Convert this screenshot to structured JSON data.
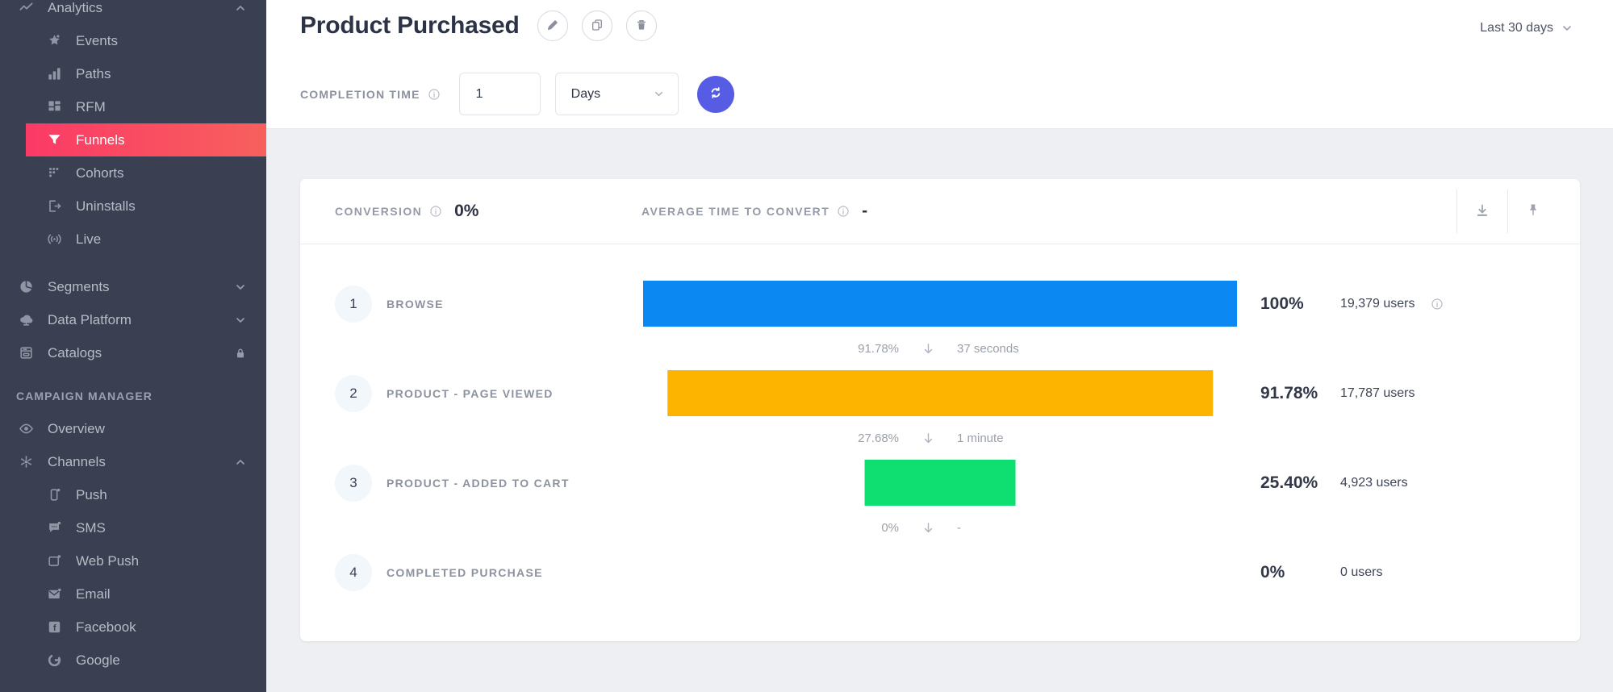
{
  "sidebar": {
    "sections": [
      {
        "title": "",
        "items": [
          {
            "label": "Analytics",
            "icon": "line-chart",
            "level": 0,
            "chevron": "up"
          },
          {
            "label": "Events",
            "icon": "star",
            "level": 1
          },
          {
            "label": "Paths",
            "icon": "bar-chart",
            "level": 1
          },
          {
            "label": "RFM",
            "icon": "grid",
            "level": 1
          },
          {
            "label": "Funnels",
            "icon": "funnel",
            "level": 1,
            "active": true
          },
          {
            "label": "Cohorts",
            "icon": "cohorts",
            "level": 1
          },
          {
            "label": "Uninstalls",
            "icon": "uninstall",
            "level": 1
          },
          {
            "label": "Live",
            "icon": "live",
            "level": 1
          },
          {
            "label": "Segments",
            "icon": "pie",
            "level": 0,
            "chevron": "down",
            "gap": true
          },
          {
            "label": "Data Platform",
            "icon": "cloud",
            "level": 0,
            "chevron": "down"
          },
          {
            "label": "Catalogs",
            "icon": "catalog",
            "level": 0,
            "lock": true
          }
        ]
      },
      {
        "title": "CAMPAIGN MANAGER",
        "items": [
          {
            "label": "Overview",
            "icon": "eye",
            "level": 0
          },
          {
            "label": "Channels",
            "icon": "hub",
            "level": 0,
            "chevron": "up"
          },
          {
            "label": "Push",
            "icon": "phone",
            "level": 1
          },
          {
            "label": "SMS",
            "icon": "chat",
            "level": 1
          },
          {
            "label": "Web Push",
            "icon": "browser",
            "level": 1
          },
          {
            "label": "Email",
            "icon": "envelope",
            "level": 1
          },
          {
            "label": "Facebook",
            "icon": "facebook",
            "level": 1
          },
          {
            "label": "Google",
            "icon": "google",
            "level": 1
          }
        ]
      }
    ]
  },
  "header": {
    "title": "Product Purchased",
    "date_range": "Last 30 days",
    "completion_time_label": "COMPLETION TIME",
    "completion_time_value": "1",
    "completion_time_unit": "Days"
  },
  "card": {
    "conversion_label": "CONVERSION",
    "conversion_value": "0%",
    "avg_time_label": "AVERAGE TIME TO CONVERT",
    "avg_time_value": "-"
  },
  "funnel": {
    "steps": [
      {
        "index": "1",
        "label": "BROWSE",
        "pct_label": "100%",
        "pct": 100,
        "users": "19,379 users",
        "color": "#0B88F1",
        "info": true
      },
      {
        "index": "2",
        "label": "PRODUCT - PAGE VIEWED",
        "pct_label": "91.78%",
        "pct": 91.78,
        "users": "17,787 users",
        "color": "#FCB400",
        "info": false
      },
      {
        "index": "3",
        "label": "PRODUCT - ADDED TO CART",
        "pct_label": "25.40%",
        "pct": 25.4,
        "users": "4,923 users",
        "color": "#0EDF70",
        "info": false
      },
      {
        "index": "4",
        "label": "COMPLETED PURCHASE",
        "pct_label": "0%",
        "pct": 0,
        "users": "0 users",
        "color": null,
        "info": false
      }
    ],
    "transitions": [
      {
        "pct": "91.78%",
        "time": "37 seconds"
      },
      {
        "pct": "27.68%",
        "time": "1 minute"
      },
      {
        "pct": "0%",
        "time": "-"
      }
    ]
  },
  "colors": {
    "sidebar_bg": "#3A4051",
    "active_gradient_start": "#FB3A66",
    "active_gradient_end": "#F7605D",
    "bar_blue": "#0B88F1",
    "bar_yellow": "#FCB400",
    "bar_green": "#0EDF70",
    "refresh_button": "#575CE5",
    "content_bg": "#EDEFF2"
  }
}
